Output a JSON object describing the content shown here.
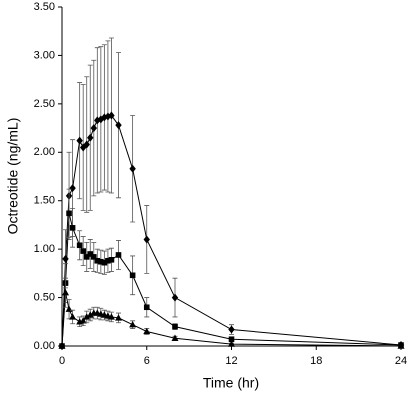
{
  "chart_data": {
    "type": "line",
    "xlabel": "Time (hr)",
    "ylabel": "Octreotide (ng/mL)",
    "x": [
      0,
      0.25,
      0.5,
      0.75,
      1.25,
      1.5,
      1.75,
      2,
      2.25,
      2.5,
      2.75,
      3,
      3.25,
      3.5,
      4,
      5,
      6,
      8,
      12,
      24
    ],
    "series": [
      {
        "color": "#000000",
        "marker": "diamond",
        "values": [
          0,
          0.9,
          1.55,
          1.63,
          2.12,
          2.05,
          2.08,
          2.15,
          2.25,
          2.33,
          2.34,
          2.36,
          2.37,
          2.38,
          2.28,
          1.83,
          1.1,
          0.5,
          0.17,
          0.01
        ],
        "errors": [
          0,
          0.3,
          0.45,
          0.5,
          0.6,
          0.65,
          0.7,
          0.75,
          0.7,
          0.75,
          0.75,
          0.75,
          0.78,
          0.8,
          0.75,
          0.55,
          0.35,
          0.2,
          0.05,
          0.01
        ]
      },
      {
        "color": "#000000",
        "marker": "square",
        "values": [
          0,
          0.65,
          1.37,
          1.22,
          1.04,
          0.98,
          0.92,
          0.95,
          0.92,
          0.88,
          0.87,
          0.86,
          0.88,
          0.89,
          0.94,
          0.73,
          0.4,
          0.2,
          0.07,
          0.01
        ],
        "errors": [
          0,
          0.2,
          0.25,
          0.2,
          0.15,
          0.15,
          0.15,
          0.15,
          0.15,
          0.12,
          0.12,
          0.12,
          0.12,
          0.12,
          0.15,
          0.2,
          0.1,
          0.03,
          0.02,
          0.01
        ]
      },
      {
        "color": "#000000",
        "marker": "triangle",
        "values": [
          0,
          0.55,
          0.38,
          0.3,
          0.25,
          0.26,
          0.3,
          0.32,
          0.34,
          0.34,
          0.33,
          0.32,
          0.31,
          0.3,
          0.29,
          0.22,
          0.15,
          0.08,
          0.02,
          0
        ],
        "errors": [
          0,
          0.15,
          0.1,
          0.07,
          0.05,
          0.05,
          0.06,
          0.06,
          0.06,
          0.06,
          0.06,
          0.05,
          0.05,
          0.05,
          0.05,
          0.04,
          0.03,
          0.02,
          0.01,
          0
        ]
      }
    ],
    "xlim": [
      0,
      24
    ],
    "xticks": [
      0,
      6,
      12,
      18,
      24
    ],
    "ylim": [
      0,
      3.5
    ],
    "yticks": [
      {
        "value": 0,
        "label": "0.00"
      },
      {
        "value": 0.5,
        "label": "0.50"
      },
      {
        "value": 1,
        "label": "1.00"
      },
      {
        "value": 1.5,
        "label": "1.50"
      },
      {
        "value": 2,
        "label": "2.00"
      },
      {
        "value": 2.5,
        "label": "2.50"
      },
      {
        "value": 3,
        "label": "3.00"
      },
      {
        "value": 3.5,
        "label": "3.50"
      }
    ],
    "grid": false
  }
}
